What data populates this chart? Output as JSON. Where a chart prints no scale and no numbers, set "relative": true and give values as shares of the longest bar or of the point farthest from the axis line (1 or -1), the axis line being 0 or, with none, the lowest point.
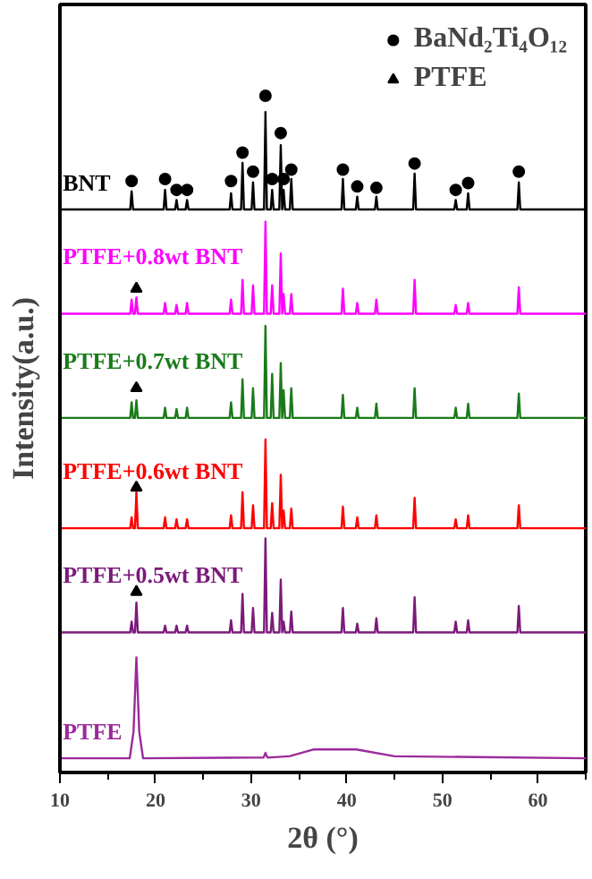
{
  "chart_data": {
    "type": "line",
    "relative": true,
    "xlabel": "2θ (°)",
    "ylabel": "Intensity(a.u.)",
    "xlim": [
      10,
      65
    ],
    "xticks": [
      10,
      20,
      30,
      40,
      50,
      60
    ],
    "tick_labels": "x",
    "grid": false,
    "legend": "top right",
    "series": [
      {
        "name": "BNT",
        "color": "#000000",
        "x": [
          10,
          17.35,
          17.5,
          17.65,
          20.85,
          21,
          21.15,
          22.05,
          22.2,
          22.35,
          23.15,
          23.3,
          23.45,
          27.75,
          27.9,
          28.05,
          28.95,
          29.1,
          29.25,
          30.05,
          30.2,
          30.35,
          31.35,
          31.5,
          31.65,
          32.05,
          32.2,
          32.35,
          32.95,
          33.1,
          33.25,
          33.25,
          33.4,
          33.55,
          34.05,
          34.2,
          34.35,
          39.45,
          39.6,
          39.75,
          40.95,
          41.1,
          41.25,
          42.95,
          43.1,
          43.25,
          46.95,
          47.1,
          47.25,
          51.25,
          51.4,
          51.55,
          52.55,
          52.7,
          52.85,
          57.85,
          58.0,
          58.15,
          65
        ],
        "values": [
          0.832,
          0.832,
          0.859,
          0.832,
          0.832,
          0.861,
          0.832,
          0.832,
          0.846,
          0.832,
          0.832,
          0.846,
          0.832,
          0.832,
          0.856,
          0.832,
          0.832,
          0.901,
          0.832,
          0.832,
          0.872,
          0.832,
          0.832,
          0.976,
          0.832,
          0.832,
          0.861,
          0.832,
          0.832,
          0.927,
          0.832,
          0.832,
          0.861,
          0.832,
          0.832,
          0.877,
          0.832,
          0.832,
          0.877,
          0.832,
          0.832,
          0.851,
          0.832,
          0.832,
          0.851,
          0.832,
          0.832,
          0.885,
          0.832,
          0.832,
          0.846,
          0.832,
          0.832,
          0.856,
          0.832,
          0.832,
          0.872,
          0.832,
          0.832
        ]
      },
      {
        "name": "PTFE+0.8wt BNT",
        "color": "#ff00ff",
        "x": [
          10,
          17.35,
          17.5,
          17.65,
          17.85,
          18,
          18.15,
          20.85,
          21,
          21.15,
          22.05,
          22.2,
          22.35,
          23.15,
          23.3,
          23.45,
          27.75,
          27.9,
          28.05,
          28.95,
          29.1,
          29.25,
          30.05,
          30.2,
          30.35,
          31.35,
          31.5,
          31.65,
          32.05,
          32.2,
          32.35,
          32.95,
          33.1,
          33.25,
          33.25,
          33.4,
          33.55,
          34.05,
          34.2,
          34.35,
          39.45,
          39.6,
          39.75,
          40.95,
          41.1,
          41.25,
          42.95,
          43.1,
          43.25,
          46.95,
          47.1,
          47.25,
          51.25,
          51.4,
          51.55,
          52.55,
          52.7,
          52.85,
          57.85,
          58.0,
          58.15,
          65
        ],
        "values": [
          0.678,
          0.678,
          0.699,
          0.678,
          0.678,
          0.702,
          0.678,
          0.678,
          0.694,
          0.678,
          0.678,
          0.691,
          0.678,
          0.678,
          0.694,
          0.678,
          0.678,
          0.699,
          0.678,
          0.678,
          0.728,
          0.678,
          0.678,
          0.72,
          0.678,
          0.678,
          0.814,
          0.678,
          0.678,
          0.72,
          0.678,
          0.678,
          0.767,
          0.678,
          0.678,
          0.707,
          0.678,
          0.678,
          0.707,
          0.678,
          0.678,
          0.715,
          0.678,
          0.678,
          0.694,
          0.678,
          0.678,
          0.699,
          0.678,
          0.678,
          0.728,
          0.678,
          0.678,
          0.691,
          0.678,
          0.678,
          0.694,
          0.678,
          0.678,
          0.717,
          0.678,
          0.678
        ]
      },
      {
        "name": "PTFE+0.7wt BNT",
        "color": "#1a7a1a",
        "x": [
          10,
          17.35,
          17.5,
          17.65,
          17.85,
          18,
          18.15,
          20.85,
          21,
          21.15,
          22.05,
          22.2,
          22.35,
          23.15,
          23.3,
          23.45,
          27.75,
          27.9,
          28.05,
          28.95,
          29.1,
          29.25,
          30.05,
          30.2,
          30.35,
          31.35,
          31.5,
          31.65,
          32.05,
          32.2,
          32.35,
          32.95,
          33.1,
          33.25,
          33.25,
          33.4,
          33.55,
          34.05,
          34.2,
          34.35,
          39.45,
          39.6,
          39.75,
          40.95,
          41.1,
          41.25,
          42.95,
          43.1,
          43.25,
          46.95,
          47.1,
          47.25,
          51.25,
          51.4,
          51.55,
          52.55,
          52.7,
          52.85,
          57.85,
          58.0,
          58.15,
          65
        ],
        "values": [
          0.524,
          0.524,
          0.547,
          0.524,
          0.524,
          0.55,
          0.524,
          0.524,
          0.539,
          0.524,
          0.524,
          0.537,
          0.524,
          0.524,
          0.539,
          0.524,
          0.524,
          0.547,
          0.524,
          0.524,
          0.581,
          0.524,
          0.524,
          0.568,
          0.524,
          0.524,
          0.66,
          0.524,
          0.524,
          0.589,
          0.524,
          0.524,
          0.605,
          0.524,
          0.524,
          0.565,
          0.524,
          0.524,
          0.568,
          0.524,
          0.524,
          0.558,
          0.524,
          0.524,
          0.539,
          0.524,
          0.524,
          0.545,
          0.524,
          0.524,
          0.568,
          0.524,
          0.524,
          0.539,
          0.524,
          0.524,
          0.545,
          0.524,
          0.524,
          0.56,
          0.524,
          0.524
        ]
      },
      {
        "name": "PTFE+0.6wt BNT",
        "color": "#ff0000",
        "x": [
          10,
          17.35,
          17.5,
          17.65,
          17.85,
          18,
          18.15,
          20.85,
          21,
          21.15,
          22.05,
          22.2,
          22.35,
          23.15,
          23.3,
          23.45,
          27.75,
          27.9,
          28.05,
          28.95,
          29.1,
          29.25,
          30.05,
          30.2,
          30.35,
          31.35,
          31.5,
          31.65,
          32.05,
          32.2,
          32.35,
          32.95,
          33.1,
          33.25,
          33.25,
          33.4,
          33.55,
          34.05,
          34.2,
          34.35,
          39.45,
          39.6,
          39.75,
          40.95,
          41.1,
          41.25,
          42.95,
          43.1,
          43.25,
          46.95,
          47.1,
          47.25,
          51.25,
          51.4,
          51.55,
          52.55,
          52.7,
          52.85,
          57.85,
          58.0,
          58.15,
          65
        ],
        "values": [
          0.361,
          0.361,
          0.377,
          0.361,
          0.361,
          0.414,
          0.361,
          0.361,
          0.377,
          0.361,
          0.361,
          0.374,
          0.361,
          0.361,
          0.374,
          0.361,
          0.361,
          0.38,
          0.361,
          0.361,
          0.414,
          0.361,
          0.361,
          0.395,
          0.361,
          0.361,
          0.492,
          0.361,
          0.361,
          0.398,
          0.361,
          0.361,
          0.44,
          0.361,
          0.361,
          0.387,
          0.361,
          0.361,
          0.39,
          0.361,
          0.361,
          0.393,
          0.361,
          0.361,
          0.377,
          0.361,
          0.361,
          0.38,
          0.361,
          0.361,
          0.406,
          0.361,
          0.361,
          0.374,
          0.361,
          0.361,
          0.38,
          0.361,
          0.361,
          0.395,
          0.361,
          0.361
        ]
      },
      {
        "name": "PTFE+0.5wt BNT",
        "color": "#7b1a7b",
        "x": [
          10,
          17.35,
          17.5,
          17.65,
          17.85,
          18,
          18.15,
          20.85,
          21,
          21.15,
          22.05,
          22.2,
          22.35,
          23.15,
          23.3,
          23.45,
          27.75,
          27.9,
          28.05,
          28.95,
          29.1,
          29.25,
          30.05,
          30.2,
          30.35,
          31.35,
          31.5,
          31.65,
          32.05,
          32.2,
          32.35,
          32.95,
          33.1,
          33.25,
          33.25,
          33.4,
          33.55,
          34.05,
          34.2,
          34.35,
          39.45,
          39.6,
          39.75,
          40.95,
          41.1,
          41.25,
          42.95,
          43.1,
          43.25,
          46.95,
          47.1,
          47.25,
          51.25,
          51.4,
          51.55,
          52.55,
          52.7,
          52.85,
          57.85,
          58.0,
          58.15,
          65
        ],
        "values": [
          0.207,
          0.207,
          0.223,
          0.207,
          0.207,
          0.251,
          0.207,
          0.207,
          0.217,
          0.207,
          0.207,
          0.217,
          0.207,
          0.207,
          0.217,
          0.207,
          0.207,
          0.225,
          0.207,
          0.207,
          0.264,
          0.207,
          0.207,
          0.243,
          0.207,
          0.207,
          0.346,
          0.207,
          0.207,
          0.236,
          0.207,
          0.207,
          0.285,
          0.207,
          0.207,
          0.223,
          0.207,
          0.207,
          0.238,
          0.207,
          0.207,
          0.243,
          0.207,
          0.207,
          0.22,
          0.207,
          0.207,
          0.228,
          0.207,
          0.207,
          0.259,
          0.207,
          0.207,
          0.223,
          0.207,
          0.207,
          0.225,
          0.207,
          0.207,
          0.246,
          0.207,
          0.207
        ]
      },
      {
        "name": "PTFE",
        "color": "#9b2a9b",
        "x": [
          10,
          17.3,
          17.7,
          18,
          18.3,
          18.7,
          30,
          31.3,
          31.5,
          31.7,
          34,
          36.5,
          41,
          45,
          65
        ],
        "values": [
          0.021,
          0.021,
          0.06,
          0.17,
          0.06,
          0.021,
          0.022,
          0.022,
          0.029,
          0.022,
          0.024,
          0.034,
          0.034,
          0.024,
          0.021
        ]
      },
      {
        "name": "BaNd₂Ti₄O₁₂",
        "type": "scatter",
        "marker": "circle",
        "color": "#000000",
        "x": [
          17.5,
          21,
          22.2,
          23.3,
          27.9,
          29.1,
          30.2,
          31.5,
          32.2,
          33.1,
          33.4,
          34.2,
          39.6,
          41.1,
          43.1,
          47.1,
          51.4,
          52.7,
          58.0
        ],
        "values": [
          0.874,
          0.877,
          0.861,
          0.861,
          0.874,
          0.916,
          0.888,
          1.0,
          0.877,
          0.945,
          0.877,
          0.891,
          0.891,
          0.866,
          0.864,
          0.9,
          0.861,
          0.871,
          0.888
        ]
      },
      {
        "name": "PTFE",
        "type": "scatter",
        "marker": "triangle",
        "color": "#000000",
        "x": [
          18,
          18,
          18,
          18
        ],
        "values": [
          0.715,
          0.568,
          0.421,
          0.267
        ]
      }
    ]
  }
}
